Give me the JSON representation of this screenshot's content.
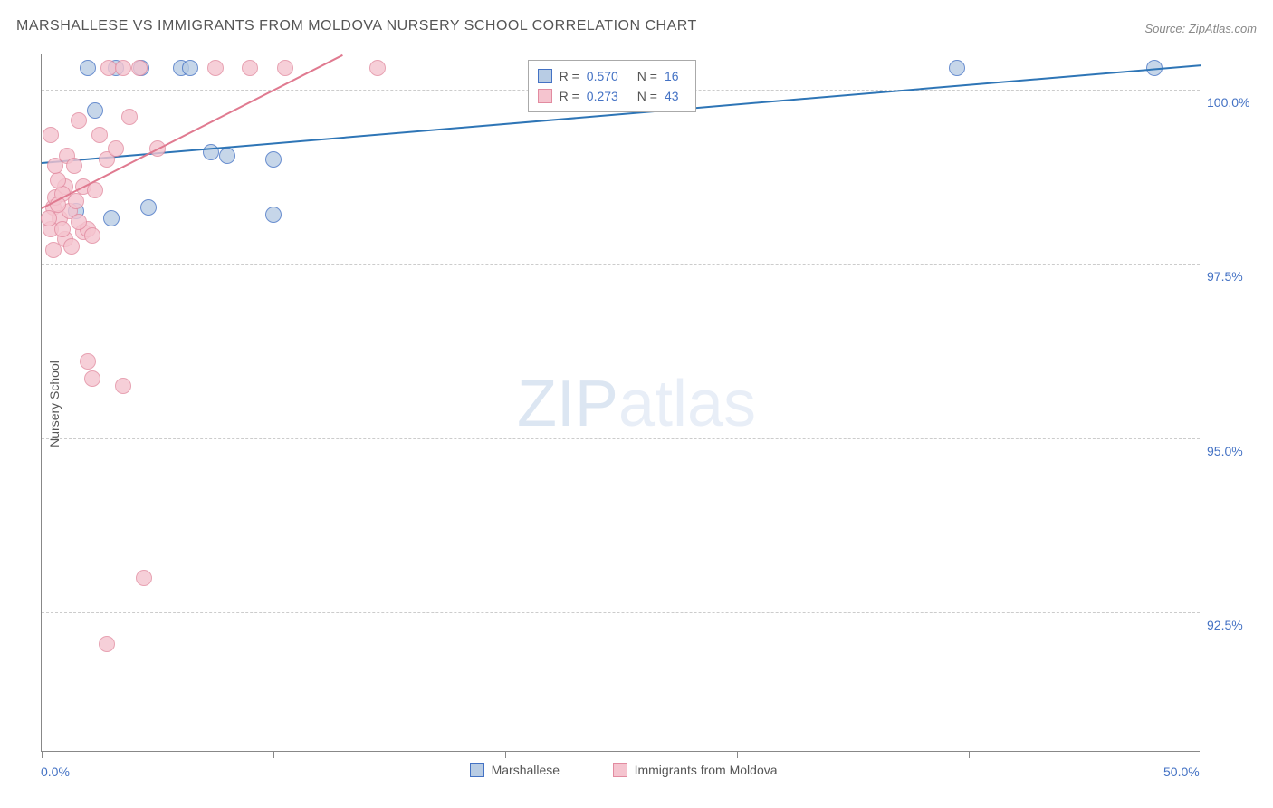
{
  "title": "MARSHALLESE VS IMMIGRANTS FROM MOLDOVA NURSERY SCHOOL CORRELATION CHART",
  "source": "Source: ZipAtlas.com",
  "y_axis_title": "Nursery School",
  "watermark_bold": "ZIP",
  "watermark_thin": "atlas",
  "chart": {
    "type": "scatter",
    "x_domain": [
      0,
      50
    ],
    "y_domain": [
      90.5,
      100.5
    ],
    "background_color": "#ffffff",
    "grid_color": "#cccccc",
    "axis_color": "#888888",
    "tick_label_color": "#4472c4",
    "y_ticks": [
      92.5,
      95.0,
      97.5,
      100.0
    ],
    "y_tick_labels": [
      "92.5%",
      "95.0%",
      "97.5%",
      "100.0%"
    ],
    "x_ticks": [
      0,
      10,
      20,
      30,
      40,
      50
    ],
    "x_tick_labels_shown": {
      "0": "0.0%",
      "50": "50.0%"
    },
    "marker_radius": 9,
    "marker_fill_opacity": 0.35,
    "marker_stroke_width": 1.2,
    "series": [
      {
        "name": "Marshallese",
        "color_fill": "#b8cce4",
        "color_stroke": "#4472c4",
        "trend_color": "#2e75b6",
        "trend_width": 2,
        "trend_p1": [
          0,
          98.95
        ],
        "trend_p2": [
          50,
          100.35
        ],
        "R": "0.570",
        "N": "16",
        "points": [
          [
            2.3,
            99.7
          ],
          [
            6.0,
            100.3
          ],
          [
            1.5,
            98.25
          ],
          [
            3.0,
            98.15
          ],
          [
            4.6,
            98.3
          ],
          [
            7.3,
            99.1
          ],
          [
            8.0,
            99.05
          ],
          [
            10.0,
            99.0
          ],
          [
            10.0,
            98.2
          ],
          [
            2.0,
            100.3
          ],
          [
            3.2,
            100.3
          ],
          [
            4.3,
            100.3
          ],
          [
            6.4,
            100.3
          ],
          [
            48.0,
            100.3
          ],
          [
            27.5,
            100.3
          ],
          [
            39.5,
            100.3
          ]
        ]
      },
      {
        "name": "Immigrants from Moldova",
        "color_fill": "#f5c4cf",
        "color_stroke": "#e28ba0",
        "trend_color": "#e07a90",
        "trend_width": 2,
        "trend_p1": [
          0,
          98.3
        ],
        "trend_p2": [
          13.0,
          100.5
        ],
        "R": "0.273",
        "N": "43",
        "points": [
          [
            0.5,
            98.3
          ],
          [
            0.8,
            98.15
          ],
          [
            0.6,
            98.45
          ],
          [
            1.0,
            98.6
          ],
          [
            0.4,
            98.0
          ],
          [
            1.2,
            98.25
          ],
          [
            0.9,
            98.5
          ],
          [
            0.3,
            98.15
          ],
          [
            1.5,
            98.4
          ],
          [
            0.7,
            98.7
          ],
          [
            1.8,
            97.95
          ],
          [
            1.0,
            97.85
          ],
          [
            0.5,
            97.7
          ],
          [
            2.0,
            98.0
          ],
          [
            2.2,
            97.9
          ],
          [
            1.3,
            97.75
          ],
          [
            0.4,
            99.35
          ],
          [
            2.8,
            99.0
          ],
          [
            3.2,
            99.15
          ],
          [
            2.5,
            99.35
          ],
          [
            1.6,
            99.55
          ],
          [
            3.8,
            99.6
          ],
          [
            2.9,
            100.3
          ],
          [
            3.5,
            100.3
          ],
          [
            4.2,
            100.3
          ],
          [
            5.0,
            99.15
          ],
          [
            7.5,
            100.3
          ],
          [
            9.0,
            100.3
          ],
          [
            10.5,
            100.3
          ],
          [
            14.5,
            100.3
          ],
          [
            2.0,
            96.1
          ],
          [
            2.2,
            95.85
          ],
          [
            3.5,
            95.75
          ],
          [
            4.4,
            93.0
          ],
          [
            2.8,
            92.05
          ],
          [
            0.6,
            98.9
          ],
          [
            1.1,
            99.05
          ],
          [
            1.8,
            98.6
          ],
          [
            1.4,
            98.9
          ],
          [
            0.9,
            98.0
          ],
          [
            0.7,
            98.35
          ],
          [
            1.6,
            98.1
          ],
          [
            2.3,
            98.55
          ]
        ]
      }
    ]
  },
  "stats_box": {
    "rows": [
      {
        "swatch_fill": "#b8cce4",
        "swatch_stroke": "#4472c4",
        "R_label": "R =",
        "R": "0.570",
        "N_label": "N =",
        "N": "16"
      },
      {
        "swatch_fill": "#f5c4cf",
        "swatch_stroke": "#e28ba0",
        "R_label": "R =",
        "R": "0.273",
        "N_label": "N =",
        "N": "43"
      }
    ]
  },
  "bottom_legend": [
    {
      "swatch_fill": "#b8cce4",
      "swatch_stroke": "#4472c4",
      "label": "Marshallese"
    },
    {
      "swatch_fill": "#f5c4cf",
      "swatch_stroke": "#e28ba0",
      "label": "Immigrants from Moldova"
    }
  ]
}
